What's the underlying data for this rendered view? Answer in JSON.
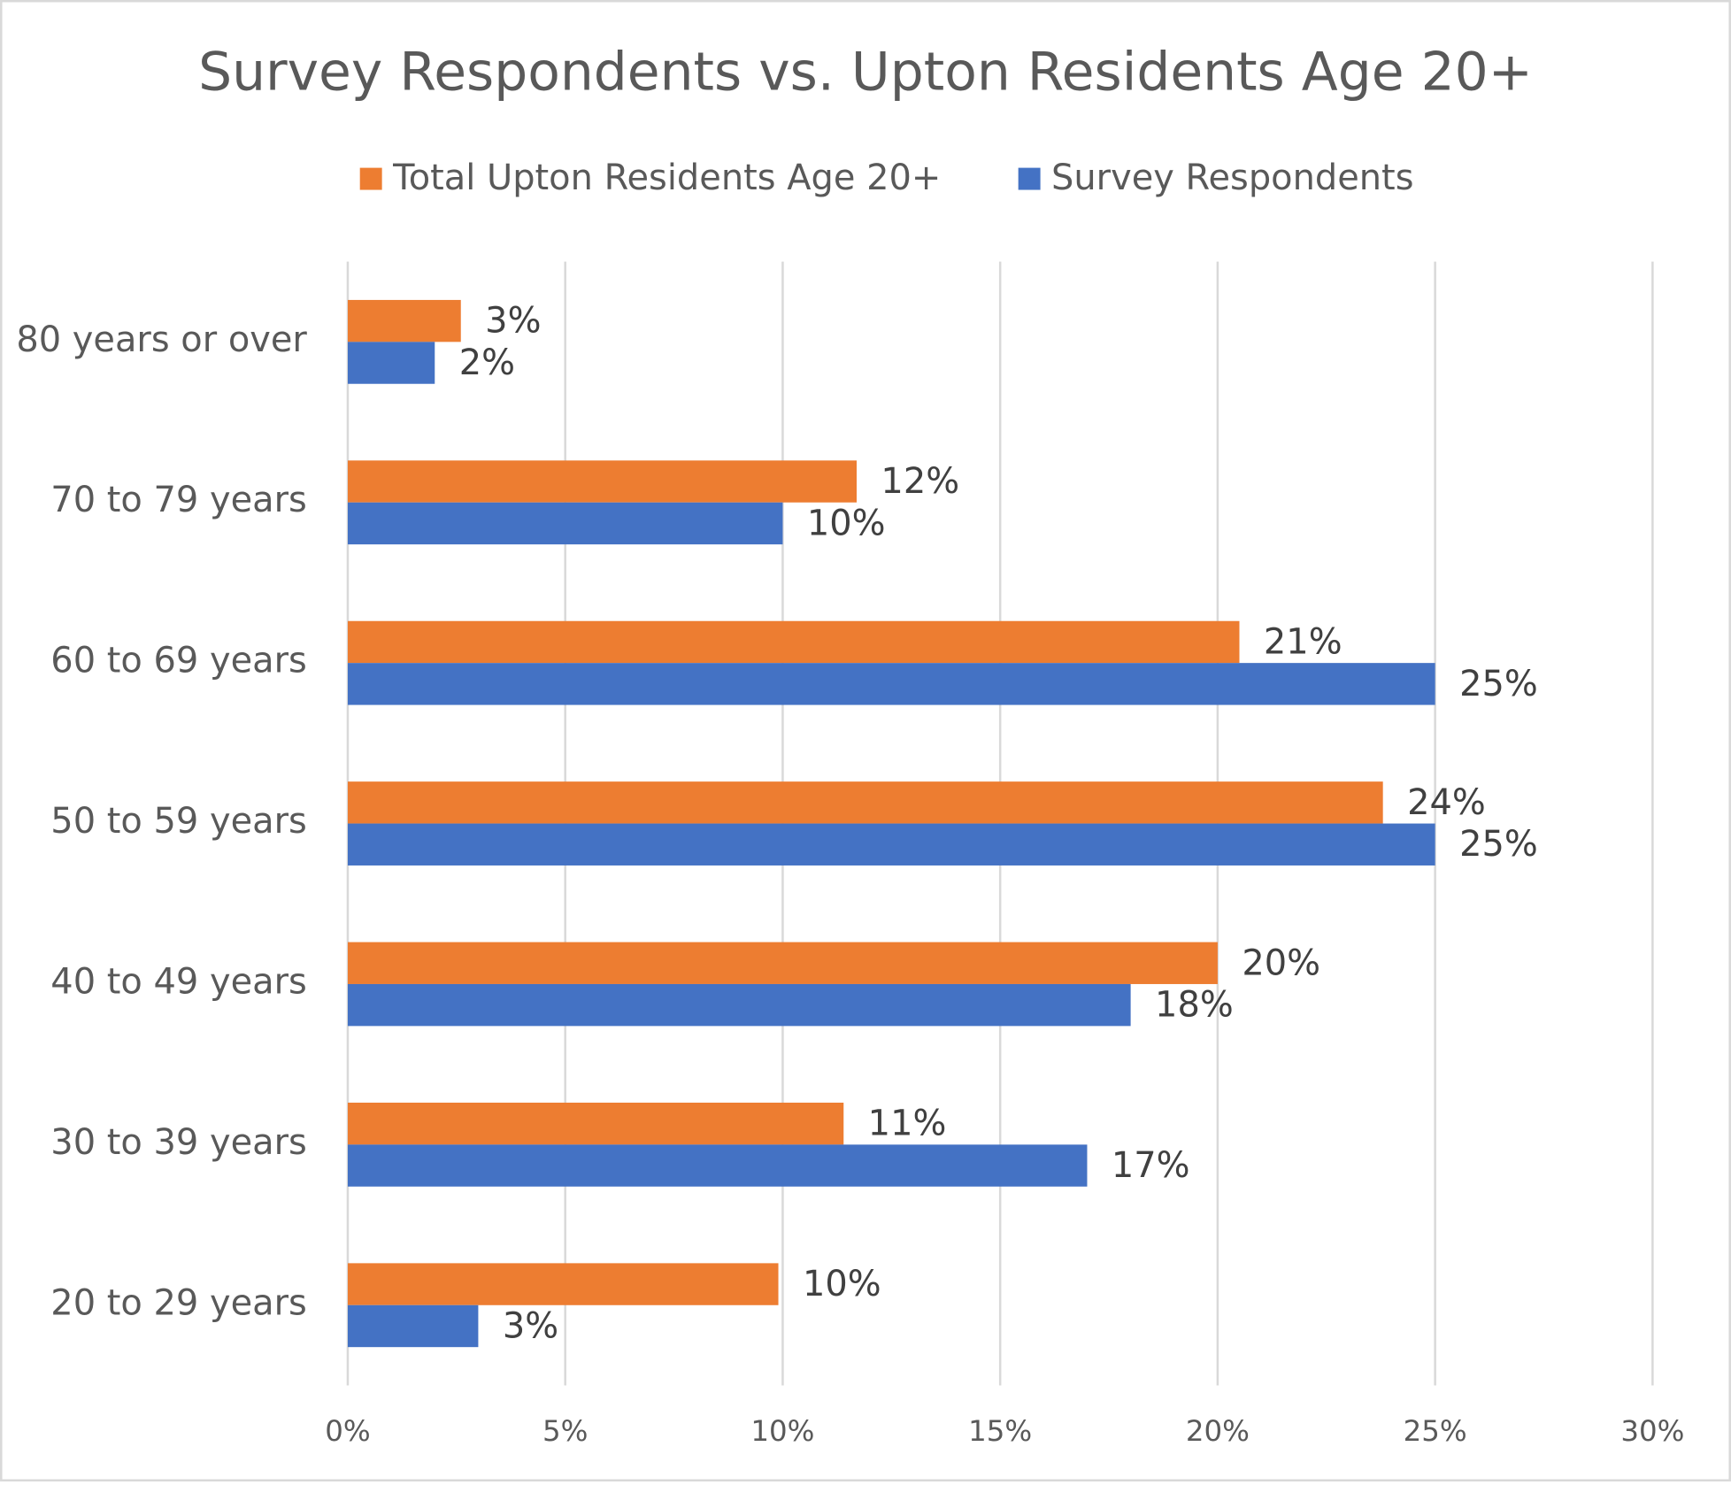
{
  "chart_data": {
    "type": "hbar",
    "title": "Survey Respondents vs. Upton Residents Age 20+",
    "categories": [
      "80 years or over",
      "70 to 79 years",
      "60 to 69 years",
      "50 to 59 years",
      "40 to 49 years",
      "30 to 39 years",
      "20 to 29 years"
    ],
    "series": [
      {
        "name": "Total Upton Residents Age 20+",
        "color": "#ed7d31",
        "values": [
          2.6,
          11.7,
          20.5,
          23.8,
          20.0,
          11.4,
          9.9
        ],
        "value_labels": [
          "3%",
          "12%",
          "21%",
          "24%",
          "20%",
          "11%",
          "10%"
        ]
      },
      {
        "name": "Survey Respondents",
        "color": "#4472c4",
        "values": [
          2.0,
          10.0,
          25.0,
          25.0,
          18.0,
          17.0,
          3.0
        ],
        "value_labels": [
          "2%",
          "10%",
          "25%",
          "25%",
          "18%",
          "17%",
          "3%"
        ]
      }
    ],
    "xlim": [
      0,
      30
    ],
    "xticks": [
      {
        "value": 0,
        "label": "0%"
      },
      {
        "value": 5,
        "label": "5%"
      },
      {
        "value": 10,
        "label": "10%"
      },
      {
        "value": 15,
        "label": "15%"
      },
      {
        "value": 20,
        "label": "20%"
      },
      {
        "value": 25,
        "label": "25%"
      },
      {
        "value": 30,
        "label": "30%"
      }
    ],
    "grid": true
  }
}
